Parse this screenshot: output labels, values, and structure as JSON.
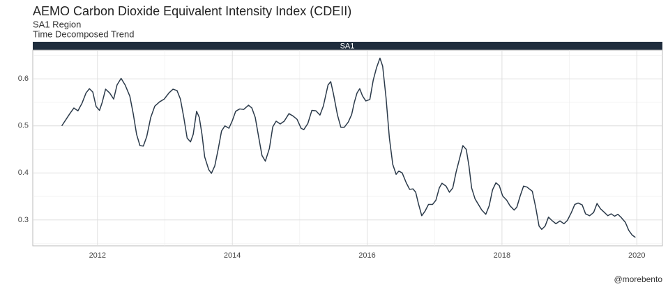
{
  "chart_data": {
    "type": "line",
    "title": "AEMO Carbon Dioxide Equivalent Intensity Index (CDEII)",
    "subtitle": [
      "SA1 Region",
      "Time Decomposed Trend"
    ],
    "facet_label": "SA1",
    "caption": "@morebento",
    "color": "#2b3a4a",
    "grid": true,
    "xlim": [
      2011.04,
      2020.38
    ],
    "ylim": [
      0.245,
      0.661
    ],
    "xticks": [
      2012,
      2014,
      2016,
      2018,
      2020
    ],
    "yticks": [
      0.3,
      0.4,
      0.5,
      0.6
    ],
    "x": [
      2011.47,
      2011.59,
      2011.65,
      2011.71,
      2011.77,
      2011.83,
      2011.88,
      2011.93,
      2011.98,
      2012.03,
      2012.07,
      2012.12,
      2012.18,
      2012.24,
      2012.29,
      2012.35,
      2012.41,
      2012.48,
      2012.53,
      2012.58,
      2012.63,
      2012.68,
      2012.73,
      2012.79,
      2012.85,
      2012.92,
      2012.99,
      2013.06,
      2013.12,
      2013.18,
      2013.23,
      2013.28,
      2013.33,
      2013.38,
      2013.42,
      2013.47,
      2013.51,
      2013.55,
      2013.59,
      2013.65,
      2013.69,
      2013.74,
      2013.79,
      2013.84,
      2013.89,
      2013.95,
      2014.0,
      2014.05,
      2014.11,
      2014.17,
      2014.24,
      2014.29,
      2014.34,
      2014.39,
      2014.44,
      2014.49,
      2014.55,
      2014.6,
      2014.65,
      2014.71,
      2014.77,
      2014.84,
      2014.9,
      2014.96,
      2015.02,
      2015.06,
      2015.12,
      2015.18,
      2015.24,
      2015.3,
      2015.35,
      2015.42,
      2015.46,
      2015.5,
      2015.56,
      2015.61,
      2015.66,
      2015.72,
      2015.77,
      2015.81,
      2015.85,
      2015.89,
      2015.93,
      2015.98,
      2016.04,
      2016.09,
      2016.14,
      2016.19,
      2016.23,
      2016.28,
      2016.33,
      2016.38,
      2016.43,
      2016.47,
      2016.52,
      2016.58,
      2016.63,
      2016.68,
      2016.72,
      2016.76,
      2016.81,
      2016.86,
      2016.91,
      2016.97,
      2017.02,
      2017.07,
      2017.11,
      2017.17,
      2017.22,
      2017.27,
      2017.32,
      2017.37,
      2017.42,
      2017.47,
      2017.51,
      2017.55,
      2017.6,
      2017.65,
      2017.7,
      2017.76,
      2017.81,
      2017.86,
      2017.91,
      2017.96,
      2018.01,
      2018.07,
      2018.12,
      2018.18,
      2018.22,
      2018.27,
      2018.32,
      2018.37,
      2018.45,
      2018.5,
      2018.55,
      2018.59,
      2018.64,
      2018.69,
      2018.74,
      2018.8,
      2018.86,
      2018.92,
      2018.97,
      2019.03,
      2019.08,
      2019.13,
      2019.19,
      2019.24,
      2019.3,
      2019.36,
      2019.41,
      2019.46,
      2019.52,
      2019.57,
      2019.62,
      2019.67,
      2019.72,
      2019.77,
      2019.83,
      2019.88,
      2019.93,
      2019.98
    ],
    "values": [
      0.5,
      0.526,
      0.538,
      0.532,
      0.548,
      0.57,
      0.579,
      0.572,
      0.541,
      0.533,
      0.55,
      0.578,
      0.57,
      0.557,
      0.587,
      0.601,
      0.587,
      0.563,
      0.526,
      0.482,
      0.458,
      0.457,
      0.477,
      0.518,
      0.542,
      0.551,
      0.557,
      0.57,
      0.578,
      0.575,
      0.557,
      0.518,
      0.474,
      0.466,
      0.482,
      0.531,
      0.518,
      0.482,
      0.434,
      0.407,
      0.399,
      0.415,
      0.45,
      0.489,
      0.5,
      0.495,
      0.511,
      0.531,
      0.536,
      0.535,
      0.544,
      0.538,
      0.518,
      0.477,
      0.437,
      0.425,
      0.452,
      0.498,
      0.51,
      0.504,
      0.51,
      0.526,
      0.521,
      0.514,
      0.495,
      0.492,
      0.505,
      0.533,
      0.532,
      0.523,
      0.542,
      0.587,
      0.594,
      0.568,
      0.523,
      0.497,
      0.497,
      0.508,
      0.524,
      0.55,
      0.57,
      0.579,
      0.564,
      0.553,
      0.556,
      0.597,
      0.624,
      0.644,
      0.627,
      0.56,
      0.474,
      0.418,
      0.397,
      0.404,
      0.4,
      0.379,
      0.365,
      0.366,
      0.359,
      0.335,
      0.309,
      0.319,
      0.333,
      0.333,
      0.342,
      0.368,
      0.378,
      0.372,
      0.359,
      0.368,
      0.402,
      0.43,
      0.458,
      0.45,
      0.415,
      0.368,
      0.345,
      0.333,
      0.321,
      0.312,
      0.33,
      0.364,
      0.379,
      0.373,
      0.351,
      0.342,
      0.33,
      0.321,
      0.327,
      0.351,
      0.372,
      0.37,
      0.361,
      0.327,
      0.287,
      0.28,
      0.287,
      0.306,
      0.299,
      0.292,
      0.298,
      0.292,
      0.299,
      0.316,
      0.333,
      0.336,
      0.332,
      0.313,
      0.309,
      0.316,
      0.335,
      0.324,
      0.316,
      0.309,
      0.313,
      0.308,
      0.312,
      0.305,
      0.295,
      0.278,
      0.268,
      0.263
    ]
  }
}
